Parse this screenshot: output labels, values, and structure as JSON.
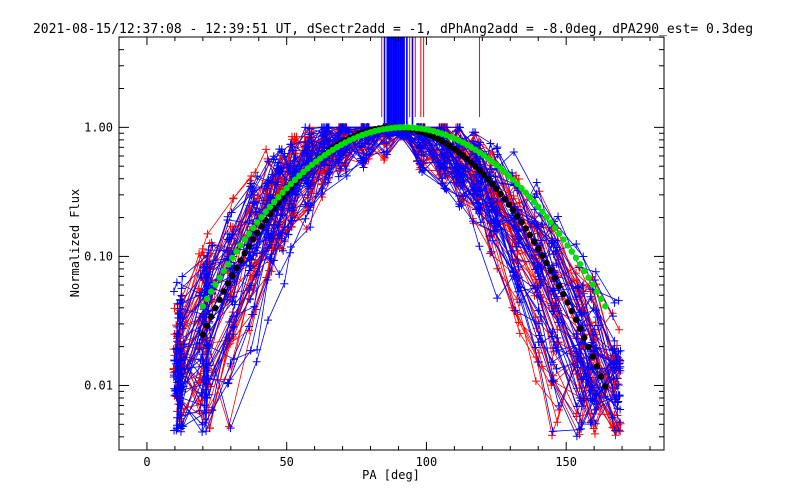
{
  "chart_data": {
    "type": "line",
    "title": "2021-08-15/12:37:08 - 12:39:51 UT, dSectr2add = -1, dPhAng2add = -8.0deg, dPA290_est=  0.3deg",
    "xlabel": "PA [deg]",
    "ylabel": "Normalized Flux",
    "xlim": [
      -10,
      185
    ],
    "ylim_log10": [
      -2.5,
      0.7
    ],
    "yscale": "log",
    "x_ticks": [
      0,
      50,
      100,
      150
    ],
    "x_tick_labels": [
      "0",
      "50",
      "100",
      "150"
    ],
    "y_ticks": [
      0.01,
      0.1,
      1.0
    ],
    "y_tick_labels": [
      "0.01",
      "0.10",
      "1.00"
    ],
    "fits": [
      {
        "name": "fit-black",
        "color": "#000000",
        "center": 88,
        "sigma": 25.0,
        "peak": 1.0
      },
      {
        "name": "fit-green",
        "color": "#00e000",
        "center": 92,
        "sigma": 28.5,
        "peak": 1.0
      }
    ],
    "vertical_lines": {
      "red_x": [
        84,
        85,
        86,
        87,
        88,
        89,
        90,
        91,
        92,
        93,
        94,
        96,
        98,
        99,
        119
      ],
      "blue_x": [
        85,
        86,
        86.5,
        87,
        87.5,
        88,
        88.5,
        89,
        89.5,
        90,
        90.5,
        91,
        91.5,
        92,
        93,
        95
      ],
      "ymin": 1.2
    },
    "series": [
      {
        "name": "red-group",
        "color": "#ff0000",
        "count": 40
      },
      {
        "name": "blue-group",
        "color": "#0000ff",
        "count": 40
      }
    ]
  }
}
